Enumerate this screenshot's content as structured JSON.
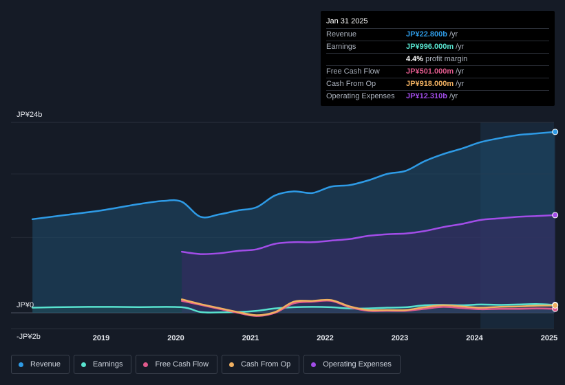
{
  "tooltip": {
    "date": "Jan 31 2025",
    "rows": [
      {
        "label": "Revenue",
        "value": "JP¥22.800b",
        "unit": "/yr",
        "color": "#2e9be6"
      },
      {
        "label": "Earnings",
        "value": "JP¥996.000m",
        "unit": "/yr",
        "color": "#58e3cf"
      },
      {
        "label": "",
        "value": "4.4%",
        "unit": "profit margin",
        "color": "#ffffff"
      },
      {
        "label": "Free Cash Flow",
        "value": "JP¥501.000m",
        "unit": "/yr",
        "color": "#e05a8c"
      },
      {
        "label": "Cash From Op",
        "value": "JP¥918.000m",
        "unit": "/yr",
        "color": "#f0b061"
      },
      {
        "label": "Operating Expenses",
        "value": "JP¥12.310b",
        "unit": "/yr",
        "color": "#a24de8"
      }
    ]
  },
  "legend": [
    {
      "label": "Revenue",
      "color": "#2e9be6"
    },
    {
      "label": "Earnings",
      "color": "#58e3cf"
    },
    {
      "label": "Free Cash Flow",
      "color": "#e05a8c"
    },
    {
      "label": "Cash From Op",
      "color": "#f0b061"
    },
    {
      "label": "Operating Expenses",
      "color": "#a24de8"
    }
  ],
  "chart_data": {
    "type": "area",
    "title": "",
    "xlabel": "",
    "ylabel": "",
    "y_unit": "JP¥ billions",
    "ylim": [
      -2,
      24
    ],
    "x_range": [
      2018,
      2025.1
    ],
    "y_tick_labels": [
      {
        "value": 24,
        "label": "JP¥24b"
      },
      {
        "value": 0,
        "label": "JP¥0"
      },
      {
        "value": -2,
        "label": "-JP¥2b"
      }
    ],
    "x_tick_labels": [
      {
        "value": 2019,
        "label": "2019"
      },
      {
        "value": 2020,
        "label": "2020"
      },
      {
        "value": 2021,
        "label": "2021"
      },
      {
        "value": 2022,
        "label": "2022"
      },
      {
        "value": 2023,
        "label": "2023"
      },
      {
        "value": 2024,
        "label": "2024"
      },
      {
        "value": 2025,
        "label": "2025"
      }
    ],
    "highlight_from": 2024.08,
    "series": [
      {
        "name": "Revenue",
        "key": "revenue",
        "color": "#2e9be6",
        "fill": true,
        "points": [
          [
            2018.08,
            11.8
          ],
          [
            2018.5,
            12.3
          ],
          [
            2019.0,
            12.9
          ],
          [
            2019.5,
            13.7
          ],
          [
            2019.83,
            14.1
          ],
          [
            2020.08,
            14.0
          ],
          [
            2020.33,
            12.1
          ],
          [
            2020.58,
            12.4
          ],
          [
            2020.83,
            12.9
          ],
          [
            2021.08,
            13.3
          ],
          [
            2021.33,
            14.8
          ],
          [
            2021.58,
            15.3
          ],
          [
            2021.83,
            15.1
          ],
          [
            2022.08,
            15.9
          ],
          [
            2022.33,
            16.1
          ],
          [
            2022.58,
            16.7
          ],
          [
            2022.83,
            17.5
          ],
          [
            2023.08,
            17.9
          ],
          [
            2023.33,
            19.1
          ],
          [
            2023.58,
            20.0
          ],
          [
            2023.83,
            20.7
          ],
          [
            2024.08,
            21.5
          ],
          [
            2024.33,
            22.0
          ],
          [
            2024.58,
            22.4
          ],
          [
            2024.83,
            22.6
          ],
          [
            2025.08,
            22.8
          ]
        ]
      },
      {
        "name": "Operating Expenses",
        "key": "opex",
        "color": "#a24de8",
        "fill": true,
        "points": [
          [
            2020.08,
            7.7
          ],
          [
            2020.33,
            7.4
          ],
          [
            2020.58,
            7.5
          ],
          [
            2020.83,
            7.8
          ],
          [
            2021.08,
            8.0
          ],
          [
            2021.33,
            8.7
          ],
          [
            2021.58,
            8.9
          ],
          [
            2021.83,
            8.9
          ],
          [
            2022.08,
            9.1
          ],
          [
            2022.33,
            9.3
          ],
          [
            2022.58,
            9.7
          ],
          [
            2022.83,
            9.9
          ],
          [
            2023.08,
            10.0
          ],
          [
            2023.33,
            10.3
          ],
          [
            2023.58,
            10.8
          ],
          [
            2023.83,
            11.2
          ],
          [
            2024.08,
            11.7
          ],
          [
            2024.33,
            11.9
          ],
          [
            2024.58,
            12.1
          ],
          [
            2024.83,
            12.2
          ],
          [
            2025.08,
            12.31
          ]
        ]
      },
      {
        "name": "Earnings",
        "key": "earnings",
        "color": "#58e3cf",
        "fill": false,
        "points": [
          [
            2018.08,
            0.65
          ],
          [
            2018.5,
            0.72
          ],
          [
            2019.0,
            0.75
          ],
          [
            2019.5,
            0.72
          ],
          [
            2020.08,
            0.7
          ],
          [
            2020.33,
            0.1
          ],
          [
            2020.58,
            0.05
          ],
          [
            2020.83,
            0.1
          ],
          [
            2021.08,
            0.25
          ],
          [
            2021.33,
            0.55
          ],
          [
            2021.58,
            0.7
          ],
          [
            2021.83,
            0.75
          ],
          [
            2022.08,
            0.7
          ],
          [
            2022.33,
            0.55
          ],
          [
            2022.58,
            0.55
          ],
          [
            2022.83,
            0.65
          ],
          [
            2023.08,
            0.7
          ],
          [
            2023.33,
            0.95
          ],
          [
            2023.58,
            1.0
          ],
          [
            2023.83,
            0.95
          ],
          [
            2024.08,
            1.05
          ],
          [
            2024.33,
            1.0
          ],
          [
            2024.58,
            1.05
          ],
          [
            2024.83,
            1.1
          ],
          [
            2025.08,
            0.996
          ]
        ]
      },
      {
        "name": "Free Cash Flow",
        "key": "fcf",
        "color": "#e05a8c",
        "fill": false,
        "points": [
          [
            2020.08,
            1.5
          ],
          [
            2020.33,
            1.0
          ],
          [
            2020.58,
            0.5
          ],
          [
            2020.83,
            0.0
          ],
          [
            2021.08,
            -0.4
          ],
          [
            2021.33,
            0.0
          ],
          [
            2021.58,
            1.2
          ],
          [
            2021.83,
            1.4
          ],
          [
            2022.08,
            1.5
          ],
          [
            2022.33,
            0.7
          ],
          [
            2022.58,
            0.25
          ],
          [
            2022.83,
            0.25
          ],
          [
            2023.08,
            0.25
          ],
          [
            2023.33,
            0.5
          ],
          [
            2023.58,
            0.75
          ],
          [
            2023.83,
            0.6
          ],
          [
            2024.08,
            0.45
          ],
          [
            2024.33,
            0.5
          ],
          [
            2024.58,
            0.5
          ],
          [
            2024.83,
            0.55
          ],
          [
            2025.08,
            0.501
          ]
        ]
      },
      {
        "name": "Cash From Op",
        "key": "cfo",
        "color": "#f0b061",
        "fill": false,
        "points": [
          [
            2020.08,
            1.7
          ],
          [
            2020.33,
            1.1
          ],
          [
            2020.58,
            0.6
          ],
          [
            2020.83,
            0.1
          ],
          [
            2021.08,
            -0.3
          ],
          [
            2021.33,
            0.1
          ],
          [
            2021.58,
            1.4
          ],
          [
            2021.83,
            1.5
          ],
          [
            2022.08,
            1.6
          ],
          [
            2022.33,
            0.8
          ],
          [
            2022.58,
            0.35
          ],
          [
            2022.83,
            0.35
          ],
          [
            2023.08,
            0.35
          ],
          [
            2023.33,
            0.7
          ],
          [
            2023.58,
            0.95
          ],
          [
            2023.83,
            0.8
          ],
          [
            2024.08,
            0.65
          ],
          [
            2024.33,
            0.75
          ],
          [
            2024.58,
            0.8
          ],
          [
            2024.83,
            0.9
          ],
          [
            2025.08,
            0.918
          ]
        ]
      }
    ]
  }
}
